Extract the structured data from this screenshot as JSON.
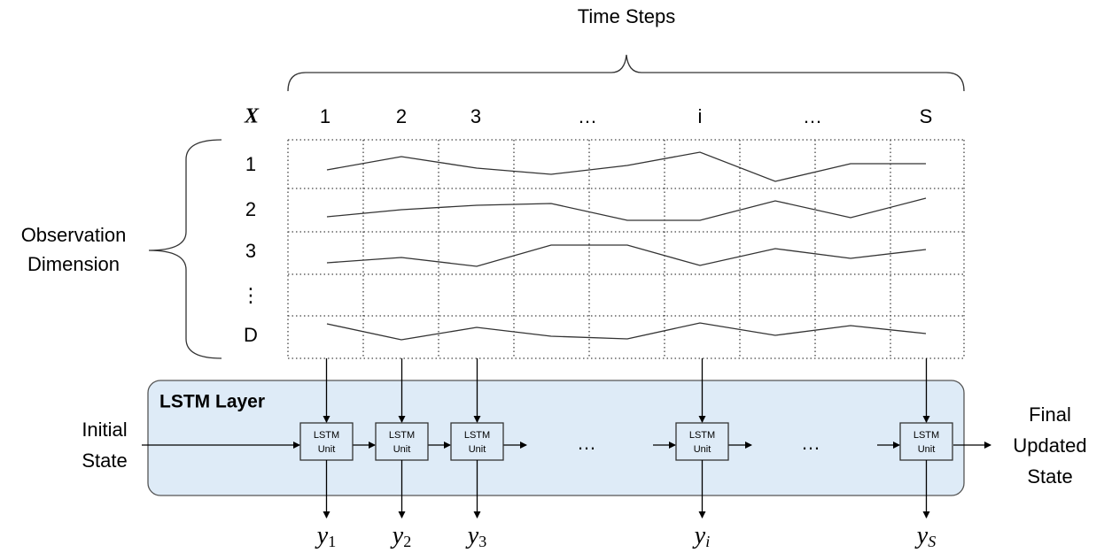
{
  "header": {
    "title": "Time Steps",
    "matrix_symbol": "X",
    "columns": [
      "1",
      "2",
      "3",
      "…",
      "i",
      "…",
      "S"
    ]
  },
  "observation": {
    "label_lines": [
      "Observation",
      "Dimension"
    ],
    "rows": [
      "1",
      "2",
      "3",
      "⋮",
      "D"
    ]
  },
  "layer": {
    "title": "LSTM Layer",
    "units": [
      {
        "lines": [
          "LSTM",
          "Unit"
        ]
      },
      {
        "lines": [
          "LSTM",
          "Unit"
        ]
      },
      {
        "lines": [
          "LSTM",
          "Unit"
        ]
      },
      {
        "lines": [
          "LSTM",
          "Unit"
        ]
      },
      {
        "lines": [
          "LSTM",
          "Unit"
        ]
      }
    ],
    "ellipses": [
      "…",
      "…"
    ]
  },
  "initial_state": [
    "Initial",
    "State"
  ],
  "final_state": [
    "Final",
    "Updated",
    "State"
  ],
  "outputs": [
    {
      "base": "y",
      "sub": "1"
    },
    {
      "base": "y",
      "sub": "2"
    },
    {
      "base": "y",
      "sub": "3"
    },
    {
      "base": "y",
      "sub": "i"
    },
    {
      "base": "y",
      "sub": "S"
    }
  ]
}
